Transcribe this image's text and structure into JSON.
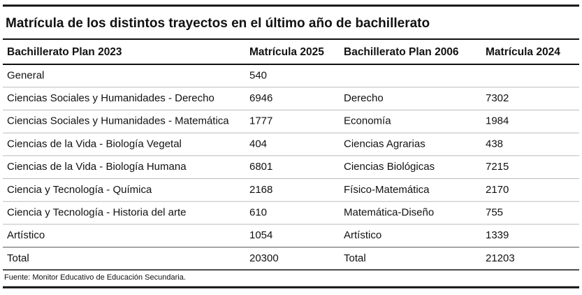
{
  "title": "Matrícula de los distintos trayectos en el último año de bachillerato",
  "table": {
    "header": [
      "Bachillerato Plan 2023",
      "Matrícula 2025",
      "Bachillerato Plan 2006",
      "Matrícula 2024"
    ],
    "rows": [
      [
        "General",
        540,
        null,
        null
      ],
      [
        "Ciencias Sociales y Humanidades - Derecho",
        6946,
        "Derecho",
        7302
      ],
      [
        "Ciencias Sociales y Humanidades - Matemática",
        1777,
        "Economía",
        1984
      ],
      [
        "Ciencias de la Vida - Biología Vegetal",
        404,
        "Ciencias Agrarias",
        438
      ],
      [
        "Ciencias de la Vida - Biología Humana",
        6801,
        "Ciencias Biológicas",
        7215
      ],
      [
        "Ciencia y Tecnología - Química",
        2168,
        "Físico-Matemática",
        2170
      ],
      [
        "Ciencia y Tecnología - Historia del arte",
        610,
        "Matemática-Diseño",
        755
      ],
      [
        "Artístico",
        1054,
        "Artístico",
        1339
      ],
      [
        "Total",
        20300,
        "Total",
        21203
      ]
    ]
  },
  "source": "Fuente: Monitor Educativo de Educación Secundaria."
}
